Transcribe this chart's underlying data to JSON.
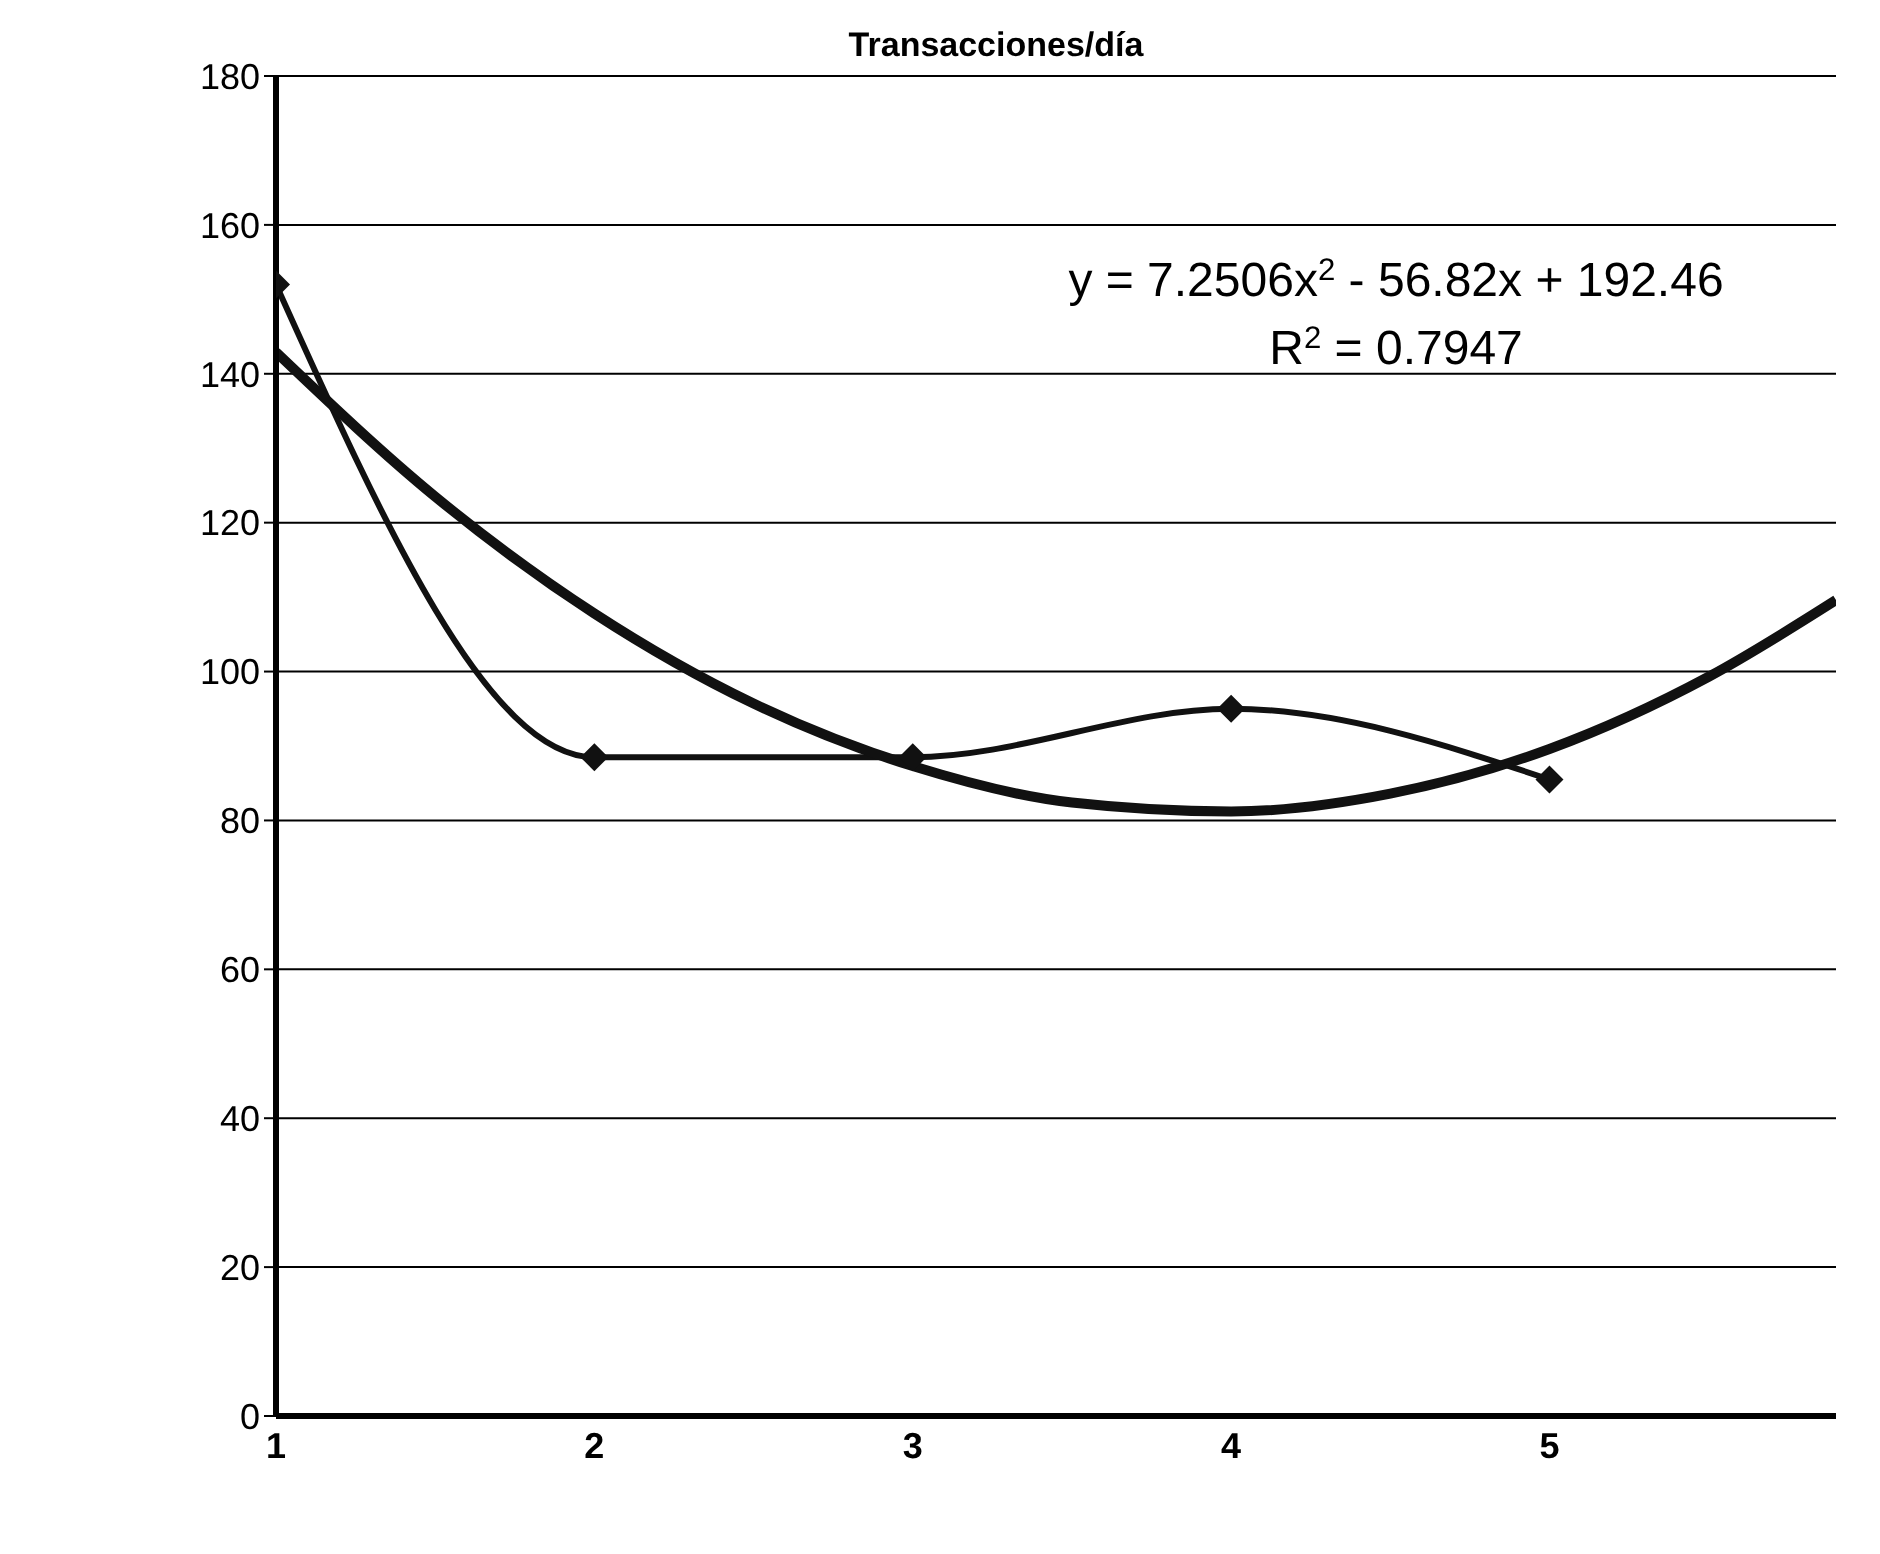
{
  "chart_data": {
    "type": "line",
    "title": "Transacciones/día",
    "xlim": [
      1,
      5.9
    ],
    "xticks": [
      1,
      2,
      3,
      4,
      5
    ],
    "ylim": [
      0,
      180
    ],
    "yticks": [
      0,
      20,
      40,
      60,
      80,
      100,
      120,
      140,
      160,
      180
    ],
    "grid": "y",
    "series": [
      {
        "color": "#111111",
        "marker": "diamond",
        "x": [
          1,
          2,
          3,
          4,
          5
        ],
        "values": [
          152,
          88.5,
          88.5,
          95,
          85.5
        ]
      },
      {
        "color": "#111111",
        "marker": "none",
        "x": [
          1,
          1.5,
          2,
          2.5,
          3,
          3.5,
          4,
          4.5,
          5,
          5.5,
          5.9
        ],
        "values": [
          142.9,
          123.5,
          107.8,
          95.7,
          87.3,
          82.4,
          81.2,
          83.6,
          89.6,
          99.3,
          109.6
        ]
      }
    ],
    "annotations": [
      "y = 7.2506x$^{2}$ - 56.82x + 192.46",
      "R$^{2}$ = 0.7947"
    ]
  }
}
